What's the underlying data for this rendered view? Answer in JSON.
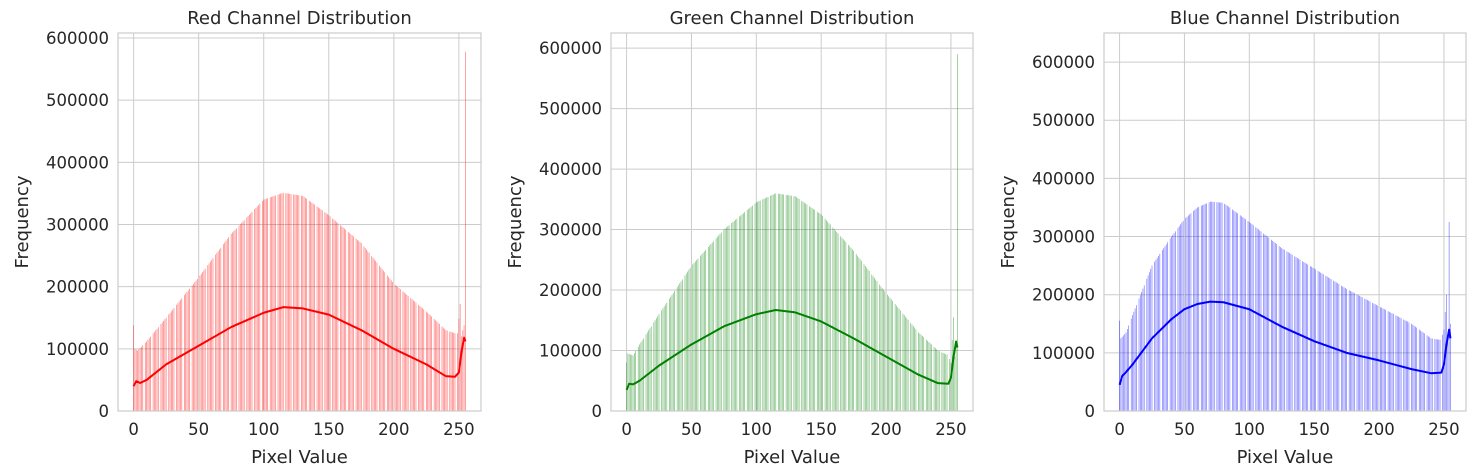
{
  "chart_data": [
    {
      "type": "histogram",
      "title": "Red Channel Distribution",
      "xlabel": "Pixel Value",
      "ylabel": "Frequency",
      "xlim": [
        -12,
        267
      ],
      "ylim": [
        0,
        608000
      ],
      "xticks": [
        0,
        50,
        100,
        150,
        200,
        250
      ],
      "yticks": [
        0,
        100000,
        200000,
        300000,
        400000,
        500000,
        600000
      ],
      "grid": true,
      "bar_color": "#ff0000",
      "kde_color": "#ff0000",
      "bar_profile": [
        [
          0,
          138000
        ],
        [
          1,
          100000
        ],
        [
          3,
          97000
        ],
        [
          10,
          112000
        ],
        [
          25,
          150000
        ],
        [
          50,
          215000
        ],
        [
          75,
          285000
        ],
        [
          100,
          340000
        ],
        [
          115,
          351000
        ],
        [
          130,
          346000
        ],
        [
          150,
          315000
        ],
        [
          175,
          270000
        ],
        [
          200,
          205000
        ],
        [
          225,
          160000
        ],
        [
          240,
          130000
        ],
        [
          247,
          125000
        ],
        [
          249,
          125000
        ],
        [
          251,
          172000
        ],
        [
          252,
          120000
        ],
        [
          253,
          130000
        ],
        [
          254,
          138000
        ],
        [
          255,
          578000
        ]
      ],
      "kde": [
        [
          0,
          40000
        ],
        [
          2,
          48000
        ],
        [
          5,
          45000
        ],
        [
          10,
          50000
        ],
        [
          25,
          75000
        ],
        [
          50,
          105000
        ],
        [
          75,
          135000
        ],
        [
          100,
          158000
        ],
        [
          115,
          167000
        ],
        [
          130,
          165000
        ],
        [
          150,
          155000
        ],
        [
          175,
          130000
        ],
        [
          200,
          100000
        ],
        [
          225,
          75000
        ],
        [
          240,
          56000
        ],
        [
          247,
          55000
        ],
        [
          250,
          62000
        ],
        [
          252,
          95000
        ],
        [
          254,
          118000
        ],
        [
          255,
          112000
        ]
      ]
    },
    {
      "type": "histogram",
      "title": "Green Channel Distribution",
      "xlabel": "Pixel Value",
      "ylabel": "Frequency",
      "xlim": [
        -12,
        267
      ],
      "ylim": [
        0,
        625000
      ],
      "xticks": [
        0,
        50,
        100,
        150,
        200,
        250
      ],
      "yticks": [
        0,
        100000,
        200000,
        300000,
        400000,
        500000,
        600000
      ],
      "grid": true,
      "bar_color": "#008000",
      "kde_color": "#008000",
      "bar_profile": [
        [
          0,
          80000
        ],
        [
          1,
          95000
        ],
        [
          5,
          92000
        ],
        [
          10,
          110000
        ],
        [
          25,
          160000
        ],
        [
          50,
          240000
        ],
        [
          75,
          300000
        ],
        [
          100,
          345000
        ],
        [
          115,
          360000
        ],
        [
          130,
          355000
        ],
        [
          150,
          325000
        ],
        [
          175,
          265000
        ],
        [
          200,
          195000
        ],
        [
          225,
          130000
        ],
        [
          240,
          100000
        ],
        [
          248,
          92000
        ],
        [
          250,
          80000
        ],
        [
          252,
          155000
        ],
        [
          253,
          90000
        ],
        [
          254,
          110000
        ],
        [
          255,
          590000
        ]
      ],
      "kde": [
        [
          0,
          35000
        ],
        [
          2,
          45000
        ],
        [
          5,
          44000
        ],
        [
          10,
          50000
        ],
        [
          25,
          75000
        ],
        [
          50,
          110000
        ],
        [
          75,
          140000
        ],
        [
          100,
          160000
        ],
        [
          115,
          167000
        ],
        [
          130,
          163000
        ],
        [
          150,
          148000
        ],
        [
          175,
          120000
        ],
        [
          200,
          90000
        ],
        [
          225,
          60000
        ],
        [
          240,
          46000
        ],
        [
          248,
          45000
        ],
        [
          250,
          55000
        ],
        [
          252,
          90000
        ],
        [
          254,
          115000
        ],
        [
          255,
          105000
        ]
      ]
    },
    {
      "type": "histogram",
      "title": "Blue Channel Distribution",
      "xlabel": "Pixel Value",
      "ylabel": "Frequency",
      "xlim": [
        -12,
        267
      ],
      "ylim": [
        0,
        650000
      ],
      "xticks": [
        0,
        50,
        100,
        150,
        200,
        250
      ],
      "yticks": [
        0,
        100000,
        200000,
        300000,
        400000,
        500000,
        600000
      ],
      "grid": true,
      "bar_color": "#0000ff",
      "kde_color": "#0000ff",
      "bar_profile": [
        [
          0,
          155000
        ],
        [
          1,
          125000
        ],
        [
          5,
          135000
        ],
        [
          10,
          165000
        ],
        [
          25,
          250000
        ],
        [
          40,
          300000
        ],
        [
          50,
          330000
        ],
        [
          60,
          350000
        ],
        [
          70,
          360000
        ],
        [
          80,
          358000
        ],
        [
          100,
          325000
        ],
        [
          125,
          280000
        ],
        [
          150,
          245000
        ],
        [
          175,
          210000
        ],
        [
          200,
          180000
        ],
        [
          225,
          150000
        ],
        [
          240,
          125000
        ],
        [
          248,
          122000
        ],
        [
          250,
          140000
        ],
        [
          252,
          200000
        ],
        [
          253,
          120000
        ],
        [
          254,
          325000
        ],
        [
          255,
          150000
        ]
      ],
      "kde": [
        [
          0,
          45000
        ],
        [
          2,
          60000
        ],
        [
          5,
          67000
        ],
        [
          10,
          80000
        ],
        [
          25,
          125000
        ],
        [
          40,
          158000
        ],
        [
          50,
          175000
        ],
        [
          60,
          184000
        ],
        [
          70,
          188000
        ],
        [
          80,
          187000
        ],
        [
          100,
          175000
        ],
        [
          125,
          145000
        ],
        [
          150,
          120000
        ],
        [
          175,
          100000
        ],
        [
          200,
          87000
        ],
        [
          225,
          72000
        ],
        [
          240,
          65000
        ],
        [
          248,
          66000
        ],
        [
          250,
          80000
        ],
        [
          252,
          115000
        ],
        [
          254,
          140000
        ],
        [
          255,
          125000
        ]
      ]
    }
  ]
}
